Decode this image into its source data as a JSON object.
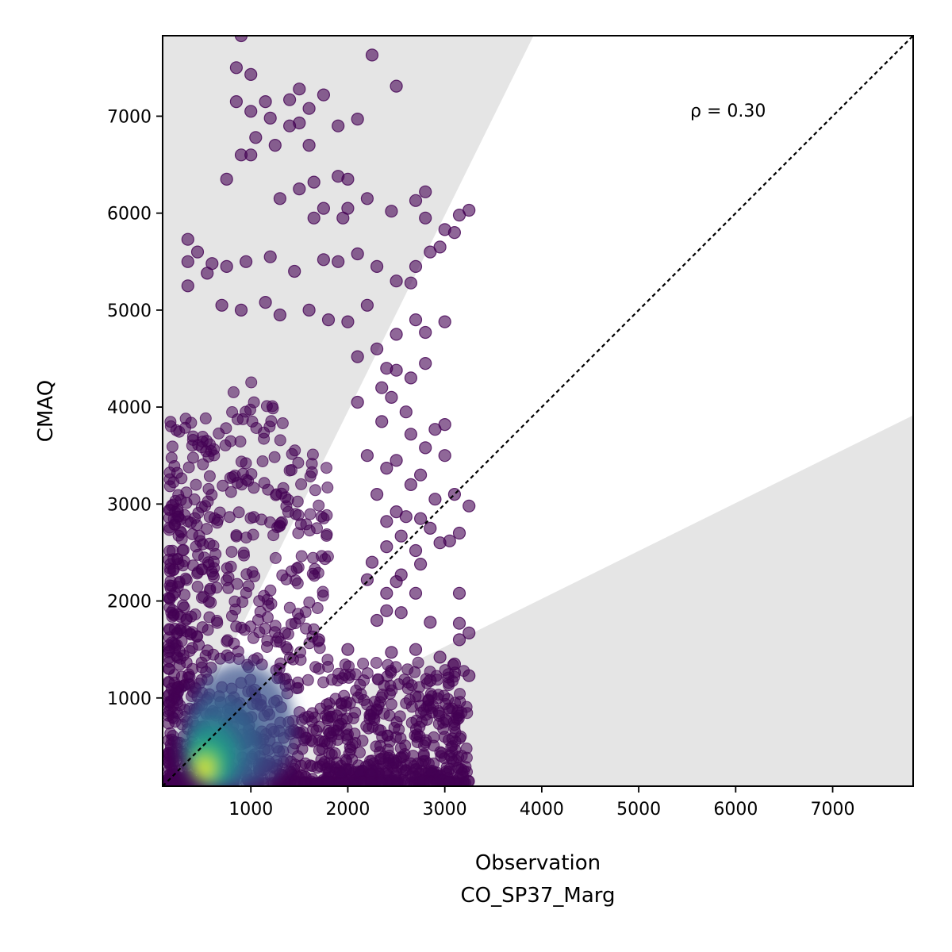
{
  "chart_data": {
    "type": "scatter",
    "xlabel": "Observation",
    "xlabel_sub": "CO_SP37_Marg",
    "ylabel": "CMAQ",
    "xlim": [
      90,
      7830
    ],
    "ylim": [
      90,
      7830
    ],
    "x_ticks": [
      1000,
      2000,
      3000,
      4000,
      5000,
      6000,
      7000
    ],
    "y_ticks": [
      1000,
      2000,
      3000,
      4000,
      5000,
      6000,
      7000
    ],
    "annotation": "ρ = 0.30",
    "reference_line": "1:1",
    "shaded_band_slopes": [
      0.5,
      2.0
    ],
    "colormap": "viridis",
    "point_alpha": 0.6,
    "outer_points": [
      [
        900,
        7830
      ],
      [
        2250,
        7630
      ],
      [
        850,
        7500
      ],
      [
        1000,
        7430
      ],
      [
        2500,
        7310
      ],
      [
        1500,
        7280
      ],
      [
        1750,
        7220
      ],
      [
        1400,
        7170
      ],
      [
        850,
        7150
      ],
      [
        1150,
        7150
      ],
      [
        1000,
        7050
      ],
      [
        1200,
        6980
      ],
      [
        2100,
        6970
      ],
      [
        1600,
        7080
      ],
      [
        1400,
        6900
      ],
      [
        1500,
        6930
      ],
      [
        1900,
        6900
      ],
      [
        1050,
        6780
      ],
      [
        1250,
        6700
      ],
      [
        900,
        6600
      ],
      [
        1000,
        6600
      ],
      [
        1600,
        6700
      ],
      [
        750,
        6350
      ],
      [
        1500,
        6250
      ],
      [
        1650,
        6320
      ],
      [
        1900,
        6380
      ],
      [
        2000,
        6350
      ],
      [
        2800,
        6220
      ],
      [
        2700,
        6130
      ],
      [
        3150,
        5980
      ],
      [
        3250,
        6030
      ],
      [
        2200,
        6150
      ],
      [
        2450,
        6020
      ],
      [
        2000,
        6050
      ],
      [
        1750,
        6050
      ],
      [
        1300,
        6150
      ],
      [
        1650,
        5950
      ],
      [
        1950,
        5950
      ],
      [
        2800,
        5950
      ],
      [
        3000,
        5830
      ],
      [
        3100,
        5800
      ],
      [
        2950,
        5650
      ],
      [
        2850,
        5600
      ],
      [
        2700,
        5450
      ],
      [
        2650,
        5280
      ],
      [
        2500,
        5300
      ],
      [
        2300,
        5450
      ],
      [
        2100,
        5580
      ],
      [
        1900,
        5500
      ],
      [
        1750,
        5520
      ],
      [
        1450,
        5400
      ],
      [
        1200,
        5550
      ],
      [
        950,
        5500
      ],
      [
        750,
        5450
      ],
      [
        600,
        5480
      ],
      [
        450,
        5600
      ],
      [
        350,
        5730
      ],
      [
        350,
        5500
      ],
      [
        550,
        5380
      ],
      [
        350,
        5250
      ],
      [
        700,
        5050
      ],
      [
        900,
        5000
      ],
      [
        1150,
        5080
      ],
      [
        1300,
        4950
      ],
      [
        1600,
        5000
      ],
      [
        1800,
        4900
      ],
      [
        2000,
        4880
      ],
      [
        2200,
        5050
      ],
      [
        2700,
        4900
      ],
      [
        3000,
        4880
      ],
      [
        2500,
        4750
      ],
      [
        2800,
        4770
      ],
      [
        2300,
        4600
      ],
      [
        2100,
        4520
      ],
      [
        2400,
        4400
      ],
      [
        2650,
        4300
      ],
      [
        2800,
        4450
      ],
      [
        2500,
        4380
      ],
      [
        2350,
        4200
      ],
      [
        2100,
        4050
      ],
      [
        2450,
        4100
      ],
      [
        2600,
        3950
      ],
      [
        2350,
        3850
      ],
      [
        2650,
        3720
      ],
      [
        2900,
        3770
      ],
      [
        3000,
        3820
      ],
      [
        2800,
        3580
      ],
      [
        2500,
        3450
      ],
      [
        3000,
        3500
      ],
      [
        2200,
        3500
      ],
      [
        2400,
        3370
      ],
      [
        2750,
        3300
      ],
      [
        2650,
        3200
      ],
      [
        2300,
        3100
      ],
      [
        2900,
        3050
      ],
      [
        3100,
        3100
      ],
      [
        3250,
        2980
      ],
      [
        2500,
        2920
      ],
      [
        2600,
        2870
      ],
      [
        2750,
        2850
      ],
      [
        2400,
        2820
      ],
      [
        2850,
        2750
      ],
      [
        3150,
        2700
      ],
      [
        2550,
        2670
      ],
      [
        2950,
        2600
      ],
      [
        3050,
        2620
      ],
      [
        2700,
        2520
      ],
      [
        2400,
        2560
      ],
      [
        2750,
        2380
      ],
      [
        2550,
        2270
      ],
      [
        2250,
        2400
      ],
      [
        2200,
        2220
      ],
      [
        2500,
        2200
      ],
      [
        2400,
        2080
      ],
      [
        3150,
        2080
      ],
      [
        2700,
        2080
      ],
      [
        2400,
        1900
      ],
      [
        2550,
        1880
      ],
      [
        2300,
        1800
      ],
      [
        2850,
        1780
      ],
      [
        3150,
        1770
      ],
      [
        3150,
        1600
      ],
      [
        3250,
        1670
      ],
      [
        2700,
        1500
      ],
      [
        2450,
        1470
      ],
      [
        2950,
        1420
      ],
      [
        3100,
        1350
      ],
      [
        2850,
        1180
      ],
      [
        3250,
        1230
      ],
      [
        2000,
        1500
      ],
      [
        1700,
        1600
      ]
    ]
  }
}
